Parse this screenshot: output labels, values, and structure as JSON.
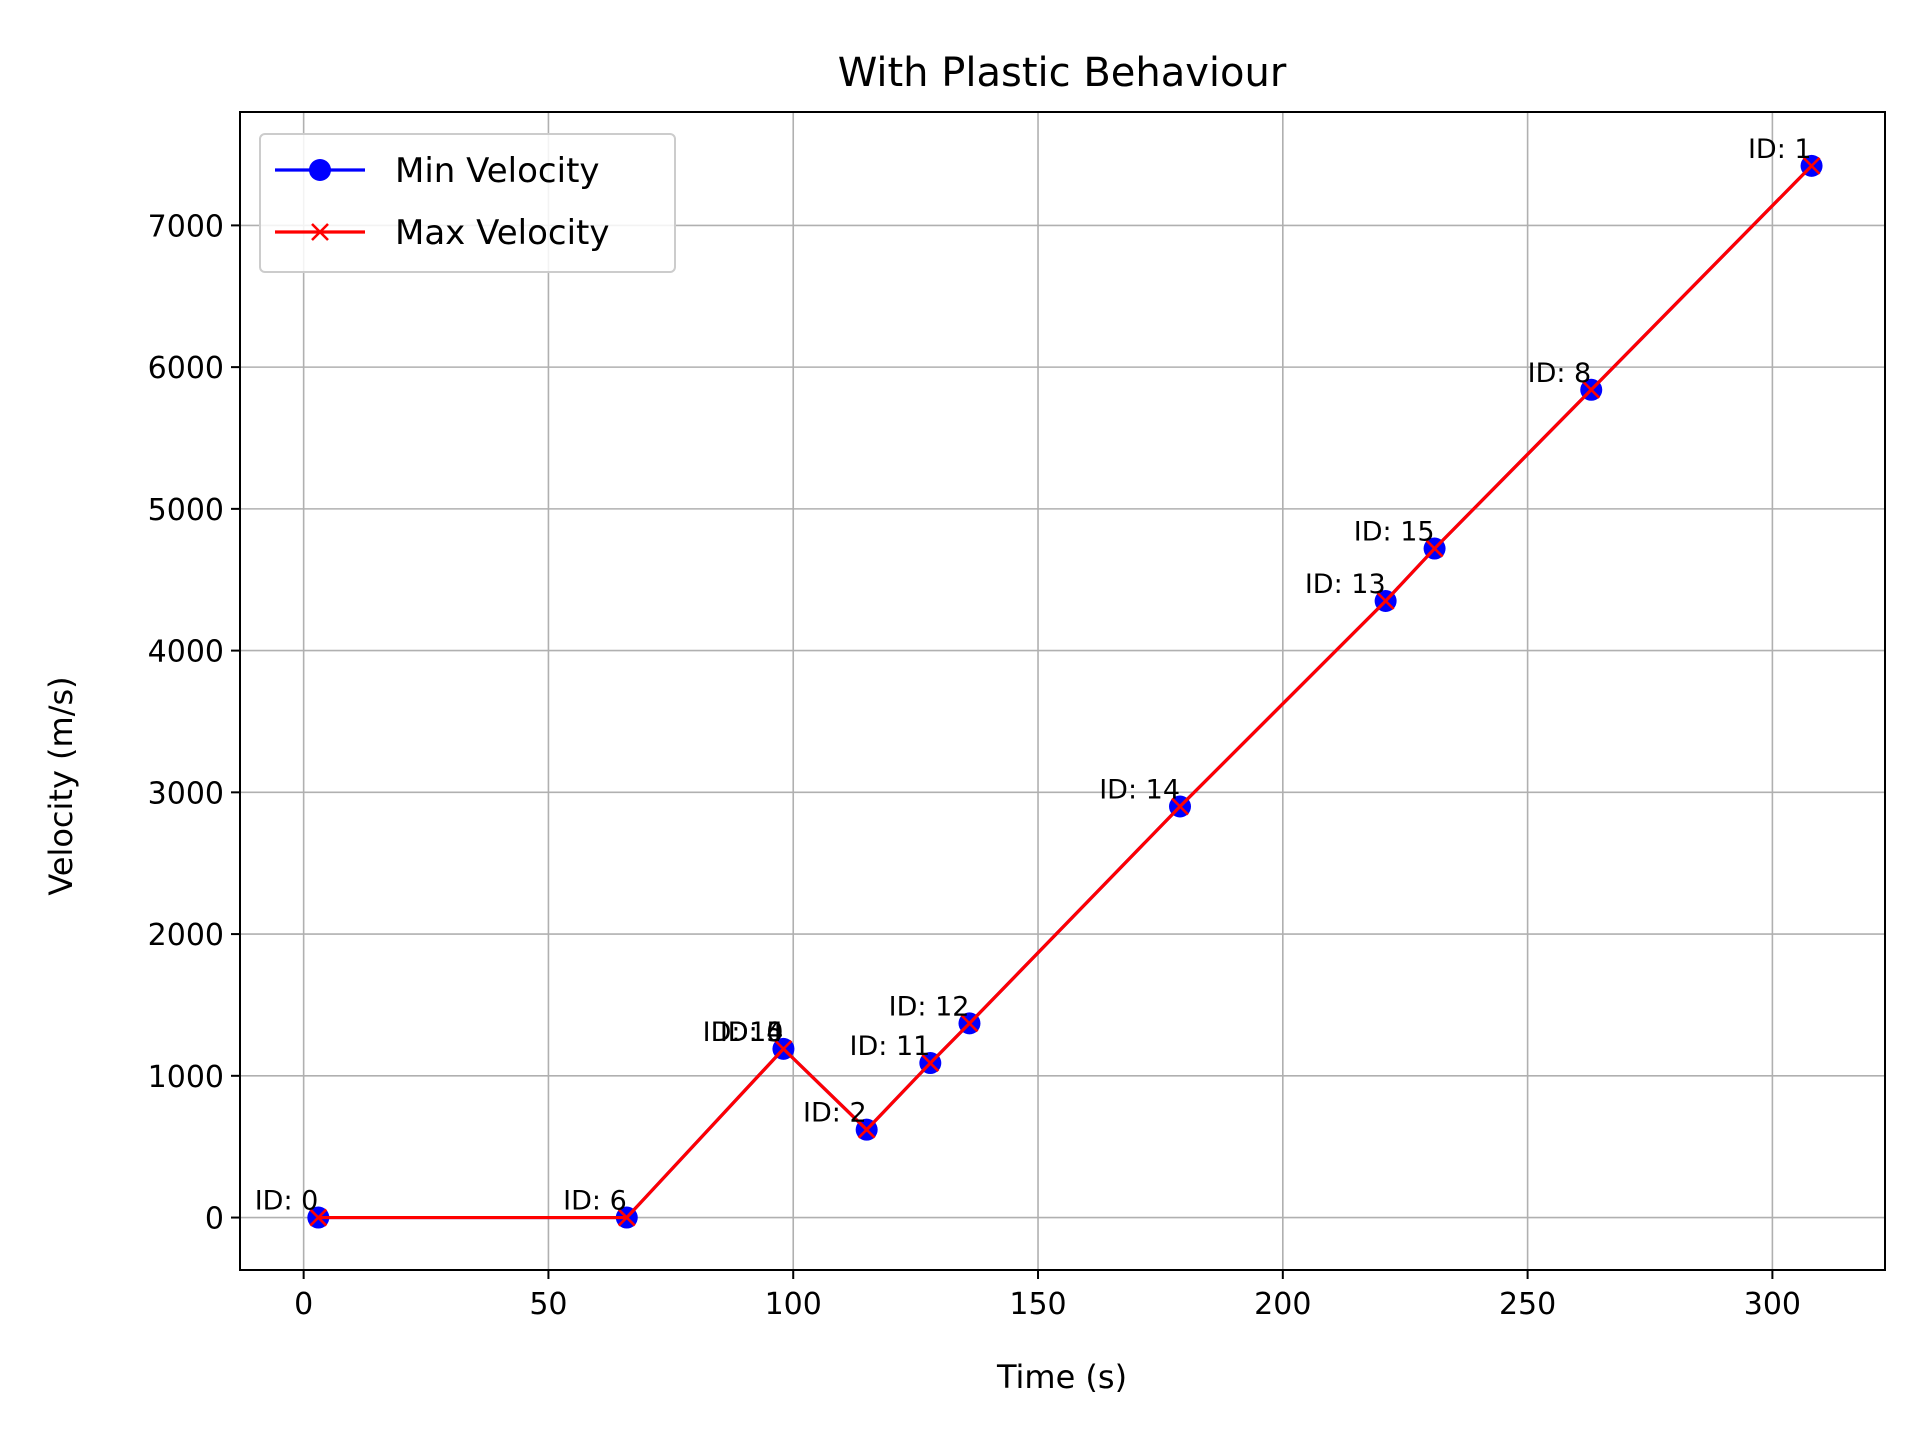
{
  "chart_data": {
    "type": "line",
    "title": "With Plastic Behaviour",
    "xlabel": "Time (s)",
    "ylabel": "Velocity (m/s)",
    "xlim": [
      -13,
      323
    ],
    "ylim": [
      -370,
      7800
    ],
    "xticks": [
      0,
      50,
      100,
      150,
      200,
      250,
      300
    ],
    "yticks": [
      0,
      1000,
      2000,
      3000,
      4000,
      5000,
      6000,
      7000
    ],
    "grid": true,
    "legend_position": "upper-left",
    "colors": {
      "min": "#0000ff",
      "max": "#ff0000"
    },
    "x": [
      3,
      66,
      98,
      115,
      128,
      136,
      179,
      221,
      231,
      263,
      308
    ],
    "series": [
      {
        "name": "Min Velocity",
        "marker": "circle",
        "values": [
          0,
          0,
          1190,
          620,
          1090,
          1370,
          2900,
          4350,
          4720,
          5840,
          7420
        ]
      },
      {
        "name": "Max Velocity",
        "marker": "x",
        "values": [
          0,
          0,
          1190,
          620,
          1090,
          1370,
          2900,
          4350,
          4720,
          5840,
          7420
        ]
      }
    ],
    "annotations": [
      {
        "text": "ID: 0",
        "x": 3,
        "y": 0
      },
      {
        "text": "ID: 6",
        "x": 66,
        "y": 0
      },
      {
        "text": "ID: 10",
        "x": 98,
        "y": 1190
      },
      {
        "text": "ID: 4",
        "x": 98,
        "y": 1190
      },
      {
        "text": "ID: 5",
        "x": 98,
        "y": 1190
      },
      {
        "text": "ID: 2",
        "x": 115,
        "y": 620
      },
      {
        "text": "ID: 11",
        "x": 128,
        "y": 1090
      },
      {
        "text": "ID: 12",
        "x": 136,
        "y": 1370
      },
      {
        "text": "ID: 14",
        "x": 179,
        "y": 2900
      },
      {
        "text": "ID: 13",
        "x": 221,
        "y": 4350
      },
      {
        "text": "ID: 15",
        "x": 231,
        "y": 4720
      },
      {
        "text": "ID: 8",
        "x": 263,
        "y": 5840
      },
      {
        "text": "ID: 1",
        "x": 308,
        "y": 7420
      }
    ]
  }
}
